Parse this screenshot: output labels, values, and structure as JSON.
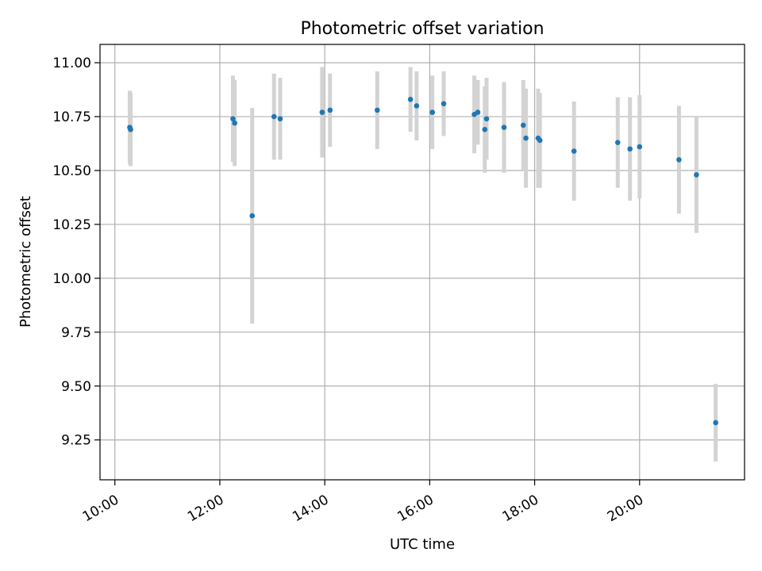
{
  "chart_data": {
    "type": "scatter",
    "title": "Photometric offset variation",
    "xlabel": "UTC time",
    "ylabel": "Photometric offset",
    "x_axis_type": "time",
    "xlim": [
      "09:43",
      "22:00"
    ],
    "ylim": [
      9.065,
      11.085
    ],
    "xticks": [
      "10:00",
      "12:00",
      "14:00",
      "16:00",
      "18:00",
      "20:00"
    ],
    "yticks": [
      9.25,
      9.5,
      9.75,
      10.0,
      10.25,
      10.5,
      10.75,
      11.0
    ],
    "ytick_labels": [
      "9.25",
      "9.50",
      "9.75",
      "10.00",
      "10.25",
      "10.50",
      "10.75",
      "11.00"
    ],
    "grid": true,
    "legend": false,
    "colors": {
      "points": "#1f77b4",
      "errorbars": "#d3d3d3",
      "grid": "#b0b0b0"
    },
    "points": [
      {
        "x": "10:17",
        "y": 10.7,
        "err": 0.17
      },
      {
        "x": "10:18",
        "y": 10.69,
        "err": 0.17
      },
      {
        "x": "12:15",
        "y": 10.74,
        "err": 0.2
      },
      {
        "x": "12:17",
        "y": 10.72,
        "err": 0.2
      },
      {
        "x": "12:37",
        "y": 10.29,
        "err": 0.5
      },
      {
        "x": "13:02",
        "y": 10.75,
        "err": 0.2
      },
      {
        "x": "13:09",
        "y": 10.74,
        "err": 0.19
      },
      {
        "x": "13:57",
        "y": 10.77,
        "err": 0.21
      },
      {
        "x": "14:06",
        "y": 10.78,
        "err": 0.17
      },
      {
        "x": "15:00",
        "y": 10.78,
        "err": 0.18
      },
      {
        "x": "15:38",
        "y": 10.83,
        "err": 0.15
      },
      {
        "x": "15:45",
        "y": 10.8,
        "err": 0.16
      },
      {
        "x": "16:03",
        "y": 10.77,
        "err": 0.17
      },
      {
        "x": "16:16",
        "y": 10.81,
        "err": 0.15
      },
      {
        "x": "16:51",
        "y": 10.76,
        "err": 0.18
      },
      {
        "x": "16:55",
        "y": 10.77,
        "err": 0.15
      },
      {
        "x": "17:03",
        "y": 10.69,
        "err": 0.2
      },
      {
        "x": "17:05",
        "y": 10.74,
        "err": 0.19
      },
      {
        "x": "17:25",
        "y": 10.7,
        "err": 0.21
      },
      {
        "x": "17:47",
        "y": 10.71,
        "err": 0.21
      },
      {
        "x": "17:50",
        "y": 10.65,
        "err": 0.23
      },
      {
        "x": "18:04",
        "y": 10.65,
        "err": 0.23
      },
      {
        "x": "18:06",
        "y": 10.64,
        "err": 0.22
      },
      {
        "x": "18:45",
        "y": 10.59,
        "err": 0.23
      },
      {
        "x": "19:35",
        "y": 10.63,
        "err": 0.21
      },
      {
        "x": "19:49",
        "y": 10.6,
        "err": 0.24
      },
      {
        "x": "20:00",
        "y": 10.61,
        "err": 0.24
      },
      {
        "x": "20:45",
        "y": 10.55,
        "err": 0.25
      },
      {
        "x": "21:05",
        "y": 10.48,
        "err": 0.27
      },
      {
        "x": "21:27",
        "y": 9.33,
        "err": 0.18
      }
    ]
  }
}
